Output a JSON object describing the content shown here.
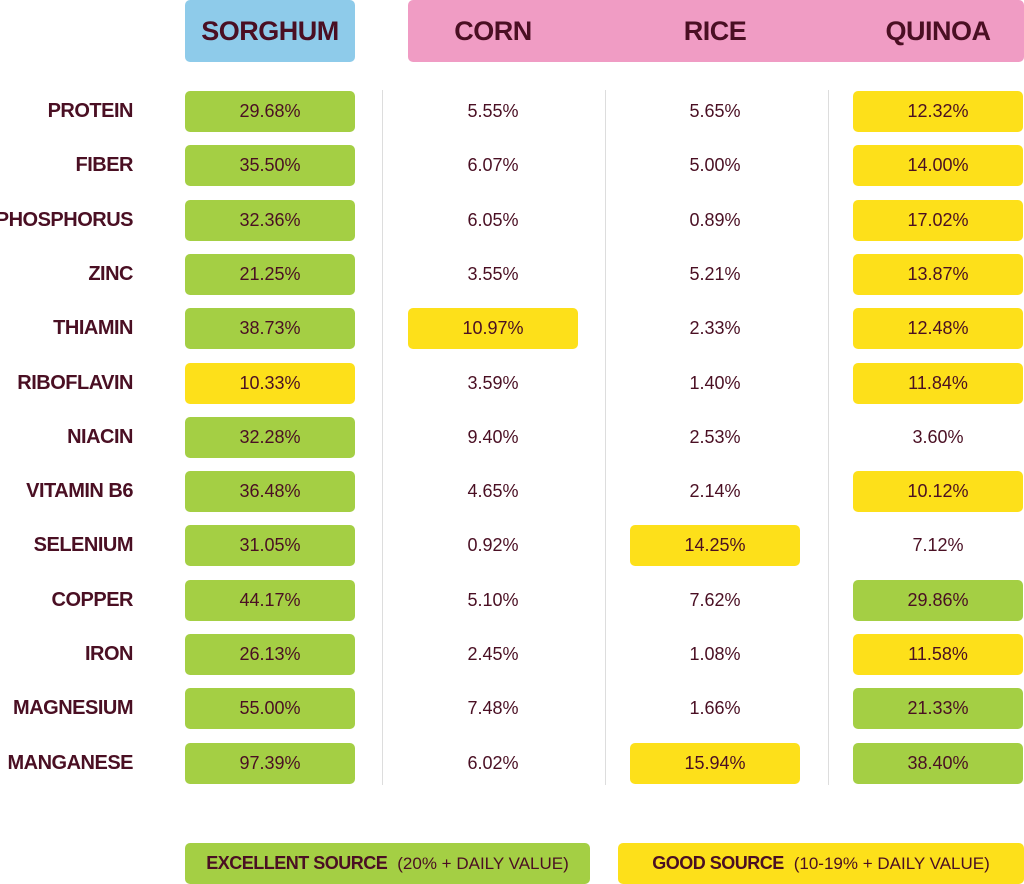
{
  "columns": [
    "SORGHUM",
    "CORN",
    "RICE",
    "QUINOA"
  ],
  "rows": [
    {
      "nutrient": "PROTEIN",
      "values": [
        "29.68%",
        "5.55%",
        "5.65%",
        "12.32%"
      ],
      "highlight": [
        "excellent",
        null,
        null,
        "good"
      ]
    },
    {
      "nutrient": "FIBER",
      "values": [
        "35.50%",
        "6.07%",
        "5.00%",
        "14.00%"
      ],
      "highlight": [
        "excellent",
        null,
        null,
        "good"
      ]
    },
    {
      "nutrient": "PHOSPHORUS",
      "values": [
        "32.36%",
        "6.05%",
        "0.89%",
        "17.02%"
      ],
      "highlight": [
        "excellent",
        null,
        null,
        "good"
      ]
    },
    {
      "nutrient": "ZINC",
      "values": [
        "21.25%",
        "3.55%",
        "5.21%",
        "13.87%"
      ],
      "highlight": [
        "excellent",
        null,
        null,
        "good"
      ]
    },
    {
      "nutrient": "THIAMIN",
      "values": [
        "38.73%",
        "10.97%",
        "2.33%",
        "12.48%"
      ],
      "highlight": [
        "excellent",
        "good",
        null,
        "good"
      ]
    },
    {
      "nutrient": "RIBOFLAVIN",
      "values": [
        "10.33%",
        "3.59%",
        "1.40%",
        "11.84%"
      ],
      "highlight": [
        "good",
        null,
        null,
        "good"
      ]
    },
    {
      "nutrient": "NIACIN",
      "values": [
        "32.28%",
        "9.40%",
        "2.53%",
        "3.60%"
      ],
      "highlight": [
        "excellent",
        null,
        null,
        null
      ]
    },
    {
      "nutrient": "VITAMIN B6",
      "values": [
        "36.48%",
        "4.65%",
        "2.14%",
        "10.12%"
      ],
      "highlight": [
        "excellent",
        null,
        null,
        "good"
      ]
    },
    {
      "nutrient": "SELENIUM",
      "values": [
        "31.05%",
        "0.92%",
        "14.25%",
        "7.12%"
      ],
      "highlight": [
        "excellent",
        null,
        "good",
        null
      ]
    },
    {
      "nutrient": "COPPER",
      "values": [
        "44.17%",
        "5.10%",
        "7.62%",
        "29.86%"
      ],
      "highlight": [
        "excellent",
        null,
        null,
        "excellent"
      ]
    },
    {
      "nutrient": "IRON",
      "values": [
        "26.13%",
        "2.45%",
        "1.08%",
        "11.58%"
      ],
      "highlight": [
        "excellent",
        null,
        null,
        "good"
      ]
    },
    {
      "nutrient": "MAGNESIUM",
      "values": [
        "55.00%",
        "7.48%",
        "1.66%",
        "21.33%"
      ],
      "highlight": [
        "excellent",
        null,
        null,
        "excellent"
      ]
    },
    {
      "nutrient": "MANGANESE",
      "values": [
        "97.39%",
        "6.02%",
        "15.94%",
        "38.40%"
      ],
      "highlight": [
        "excellent",
        null,
        "good",
        "excellent"
      ]
    }
  ],
  "legend": [
    {
      "key": "excellent",
      "label": "EXCELLENT SOURCE",
      "note": "(20% + DAILY VALUE)",
      "color": "#a4cf44"
    },
    {
      "key": "good",
      "label": "GOOD SOURCE",
      "note": "(10-19% + DAILY VALUE)",
      "color": "#fde01a"
    }
  ]
}
